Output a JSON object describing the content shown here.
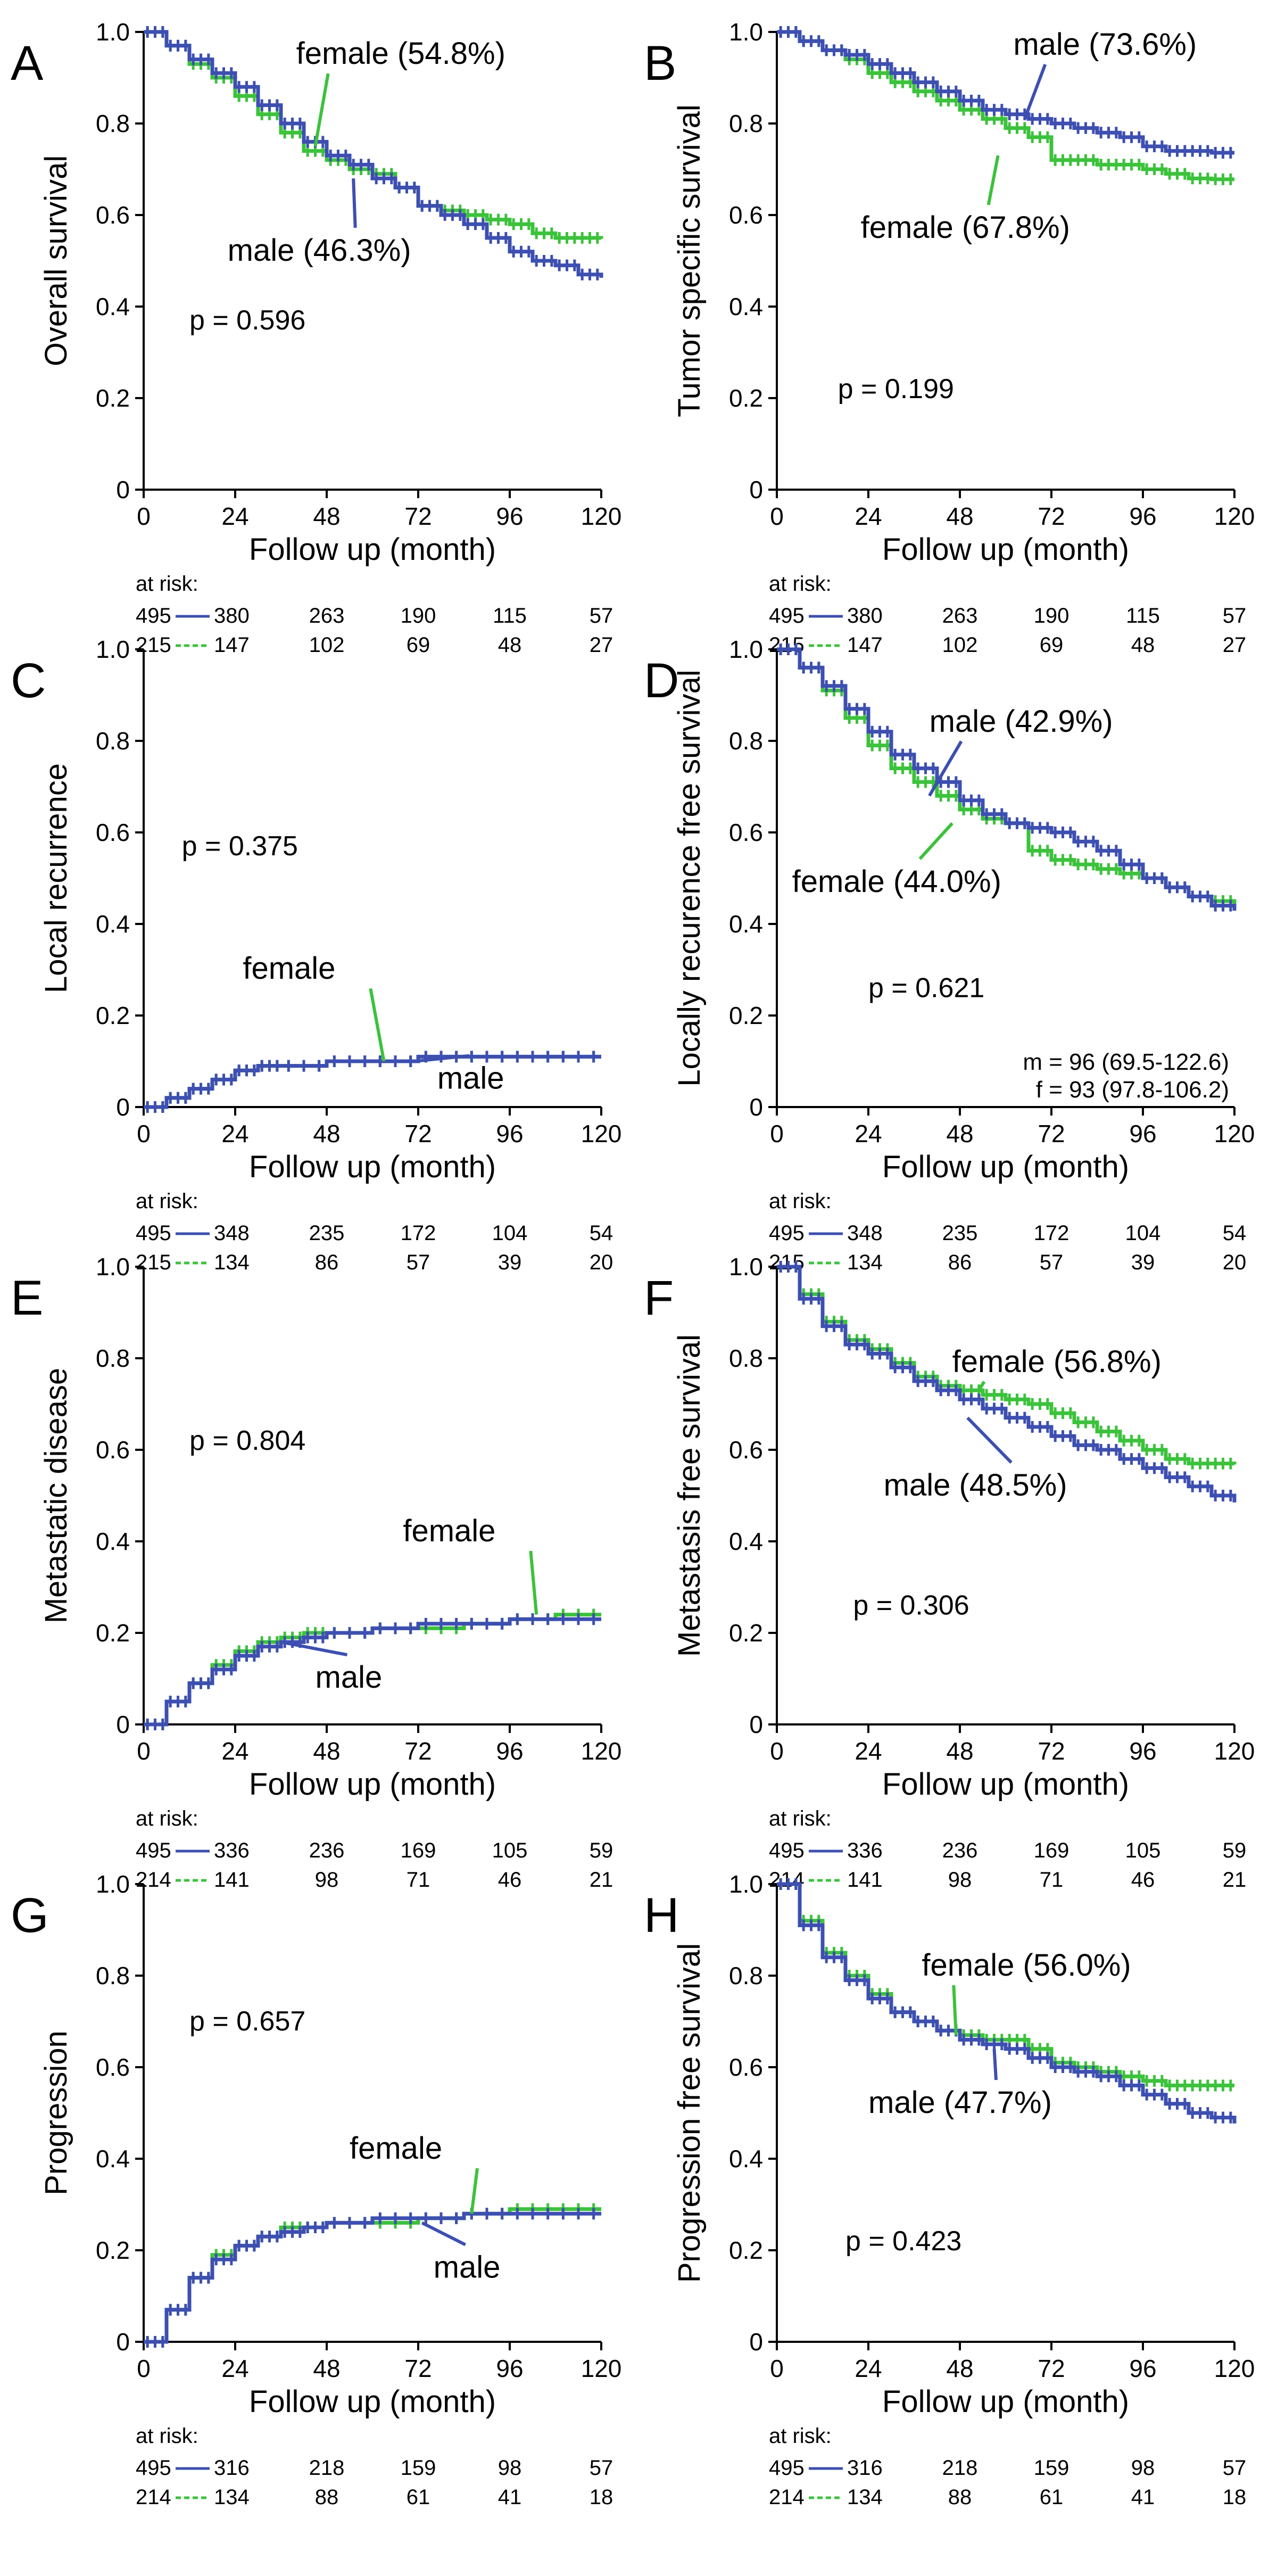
{
  "figure": {
    "colors": {
      "male": "#3d4fb0",
      "female": "#3cc23c",
      "axis": "#000000"
    },
    "x_label": "Follow up (month)",
    "x_ticks": [
      "0",
      "24",
      "48",
      "72",
      "96",
      "120"
    ],
    "y_ticks": [
      "0",
      "0.2",
      "0.4",
      "0.6",
      "0.8",
      "1.0"
    ],
    "at_risk_label": "at risk:"
  },
  "chart_data": [
    {
      "panel": "A",
      "type": "line",
      "kind": "survival",
      "ylabel": "Overall survival",
      "xlim": [
        0,
        120
      ],
      "ylim": [
        0,
        1
      ],
      "p_value": "p = 0.596",
      "series": [
        {
          "name": "male",
          "label": "male (46.3%)",
          "x": [
            0,
            6,
            12,
            18,
            24,
            30,
            36,
            42,
            48,
            54,
            60,
            66,
            72,
            78,
            84,
            90,
            96,
            102,
            108,
            114,
            120
          ],
          "y": [
            1.0,
            0.97,
            0.94,
            0.91,
            0.88,
            0.84,
            0.8,
            0.76,
            0.73,
            0.71,
            0.68,
            0.66,
            0.62,
            0.6,
            0.58,
            0.55,
            0.52,
            0.5,
            0.49,
            0.47,
            0.463
          ]
        },
        {
          "name": "female",
          "label": "female (54.8%)",
          "x": [
            0,
            6,
            12,
            18,
            24,
            30,
            36,
            42,
            48,
            54,
            60,
            66,
            72,
            78,
            84,
            90,
            96,
            102,
            108,
            114,
            120
          ],
          "y": [
            1.0,
            0.97,
            0.93,
            0.9,
            0.86,
            0.82,
            0.78,
            0.74,
            0.72,
            0.7,
            0.69,
            0.66,
            0.62,
            0.61,
            0.6,
            0.59,
            0.58,
            0.56,
            0.55,
            0.55,
            0.548
          ]
        }
      ],
      "at_risk": {
        "male": [
          "495",
          "380",
          "263",
          "190",
          "115",
          "57"
        ],
        "female": [
          "215",
          "147",
          "102",
          "69",
          "48",
          "27"
        ]
      }
    },
    {
      "panel": "B",
      "type": "line",
      "kind": "survival",
      "ylabel": "Tumor specific survival",
      "xlim": [
        0,
        120
      ],
      "ylim": [
        0,
        1
      ],
      "p_value": "p = 0.199",
      "series": [
        {
          "name": "male",
          "label": "male (73.6%)",
          "x": [
            0,
            6,
            12,
            18,
            24,
            30,
            36,
            42,
            48,
            54,
            60,
            66,
            72,
            78,
            84,
            90,
            96,
            102,
            108,
            114,
            120
          ],
          "y": [
            1.0,
            0.98,
            0.96,
            0.95,
            0.93,
            0.91,
            0.89,
            0.87,
            0.85,
            0.83,
            0.82,
            0.81,
            0.8,
            0.79,
            0.78,
            0.77,
            0.75,
            0.74,
            0.74,
            0.736,
            0.736
          ]
        },
        {
          "name": "female",
          "label": "female (67.8%)",
          "x": [
            0,
            6,
            12,
            18,
            24,
            30,
            36,
            42,
            48,
            54,
            60,
            66,
            72,
            78,
            84,
            90,
            96,
            102,
            108,
            114,
            120
          ],
          "y": [
            1.0,
            0.98,
            0.96,
            0.94,
            0.91,
            0.89,
            0.87,
            0.85,
            0.83,
            0.81,
            0.79,
            0.77,
            0.72,
            0.72,
            0.71,
            0.71,
            0.7,
            0.69,
            0.68,
            0.678,
            0.678
          ]
        }
      ],
      "at_risk": {
        "male": [
          "495",
          "380",
          "263",
          "190",
          "115",
          "57"
        ],
        "female": [
          "215",
          "147",
          "102",
          "69",
          "48",
          "27"
        ]
      }
    },
    {
      "panel": "C",
      "type": "line",
      "kind": "cumulative",
      "ylabel": "Local recurrence",
      "xlim": [
        0,
        120
      ],
      "ylim": [
        0,
        1
      ],
      "p_value": "p = 0.375",
      "series": [
        {
          "name": "male",
          "label": "male",
          "x": [
            0,
            6,
            12,
            18,
            24,
            30,
            36,
            48,
            60,
            72,
            84,
            96,
            108,
            120
          ],
          "y": [
            0.0,
            0.02,
            0.04,
            0.06,
            0.08,
            0.09,
            0.09,
            0.1,
            0.1,
            0.11,
            0.11,
            0.11,
            0.11,
            0.11
          ]
        },
        {
          "name": "female",
          "label": "female",
          "x": [
            0,
            6,
            12,
            18,
            24,
            30,
            36,
            48,
            60,
            72,
            84,
            96,
            108,
            120
          ],
          "y": [
            0.0,
            0.02,
            0.04,
            0.06,
            0.08,
            0.09,
            0.09,
            0.1,
            0.1,
            0.11,
            0.11,
            0.11,
            0.11,
            0.11
          ]
        }
      ],
      "at_risk": {
        "male": [
          "495",
          "348",
          "235",
          "172",
          "104",
          "54"
        ],
        "female": [
          "215",
          "134",
          "86",
          "57",
          "39",
          "20"
        ]
      }
    },
    {
      "panel": "D",
      "type": "line",
      "kind": "survival",
      "ylabel": "Locally recurence free survival",
      "xlim": [
        0,
        120
      ],
      "ylim": [
        0,
        1
      ],
      "p_value": "p = 0.621",
      "median_note": [
        "m = 96 (69.5-122.6)",
        "f   = 93 (97.8-106.2)"
      ],
      "series": [
        {
          "name": "male",
          "label": "male (42.9%)",
          "x": [
            0,
            6,
            12,
            18,
            24,
            30,
            36,
            42,
            48,
            54,
            60,
            66,
            72,
            78,
            84,
            90,
            96,
            102,
            108,
            114,
            120
          ],
          "y": [
            1.0,
            0.96,
            0.92,
            0.87,
            0.82,
            0.77,
            0.74,
            0.71,
            0.67,
            0.64,
            0.62,
            0.61,
            0.6,
            0.58,
            0.56,
            0.53,
            0.5,
            0.48,
            0.46,
            0.44,
            0.429
          ]
        },
        {
          "name": "female",
          "label": "female (44.0%)",
          "x": [
            0,
            6,
            12,
            18,
            24,
            30,
            36,
            42,
            48,
            54,
            60,
            66,
            72,
            78,
            84,
            90,
            96,
            102,
            108,
            114,
            120
          ],
          "y": [
            1.0,
            0.96,
            0.91,
            0.85,
            0.79,
            0.74,
            0.71,
            0.68,
            0.65,
            0.63,
            0.62,
            0.56,
            0.54,
            0.53,
            0.52,
            0.51,
            0.5,
            0.48,
            0.46,
            0.45,
            0.44
          ]
        }
      ],
      "at_risk": {
        "male": [
          "495",
          "348",
          "235",
          "172",
          "104",
          "54"
        ],
        "female": [
          "215",
          "134",
          "86",
          "57",
          "39",
          "20"
        ]
      }
    },
    {
      "panel": "E",
      "type": "line",
      "kind": "cumulative",
      "ylabel": "Metastatic disease",
      "xlim": [
        0,
        120
      ],
      "ylim": [
        0,
        1
      ],
      "p_value": "p = 0.804",
      "series": [
        {
          "name": "male",
          "label": "male",
          "x": [
            0,
            6,
            12,
            18,
            24,
            30,
            36,
            42,
            48,
            60,
            72,
            84,
            96,
            108,
            120
          ],
          "y": [
            0.0,
            0.05,
            0.09,
            0.12,
            0.15,
            0.17,
            0.18,
            0.19,
            0.2,
            0.21,
            0.22,
            0.22,
            0.23,
            0.23,
            0.23
          ]
        },
        {
          "name": "female",
          "label": "female",
          "x": [
            0,
            6,
            12,
            18,
            24,
            30,
            36,
            42,
            48,
            60,
            72,
            84,
            96,
            108,
            120
          ],
          "y": [
            0.0,
            0.05,
            0.09,
            0.13,
            0.16,
            0.18,
            0.19,
            0.2,
            0.2,
            0.21,
            0.21,
            0.22,
            0.23,
            0.24,
            0.24
          ]
        }
      ],
      "at_risk": {
        "male": [
          "495",
          "336",
          "236",
          "169",
          "105",
          "59"
        ],
        "female": [
          "214",
          "141",
          "98",
          "71",
          "46",
          "21"
        ]
      }
    },
    {
      "panel": "F",
      "type": "line",
      "kind": "survival",
      "ylabel": "Metastasis free survival",
      "xlim": [
        0,
        120
      ],
      "ylim": [
        0,
        1
      ],
      "p_value": "p = 0.306",
      "series": [
        {
          "name": "male",
          "label": "male (48.5%)",
          "x": [
            0,
            6,
            12,
            18,
            24,
            30,
            36,
            42,
            48,
            54,
            60,
            66,
            72,
            78,
            84,
            90,
            96,
            102,
            108,
            114,
            120
          ],
          "y": [
            1.0,
            0.93,
            0.87,
            0.83,
            0.81,
            0.78,
            0.75,
            0.73,
            0.71,
            0.69,
            0.67,
            0.65,
            0.63,
            0.61,
            0.6,
            0.58,
            0.56,
            0.54,
            0.52,
            0.5,
            0.485
          ]
        },
        {
          "name": "female",
          "label": "female (56.8%)",
          "x": [
            0,
            6,
            12,
            18,
            24,
            30,
            36,
            42,
            48,
            54,
            60,
            66,
            72,
            78,
            84,
            90,
            96,
            102,
            108,
            114,
            120
          ],
          "y": [
            1.0,
            0.94,
            0.88,
            0.84,
            0.82,
            0.79,
            0.76,
            0.74,
            0.73,
            0.72,
            0.71,
            0.7,
            0.68,
            0.66,
            0.64,
            0.62,
            0.6,
            0.58,
            0.57,
            0.57,
            0.568
          ]
        }
      ],
      "at_risk": {
        "male": [
          "495",
          "336",
          "236",
          "169",
          "105",
          "59"
        ],
        "female": [
          "214",
          "141",
          "98",
          "71",
          "46",
          "21"
        ]
      }
    },
    {
      "panel": "G",
      "type": "line",
      "kind": "cumulative",
      "ylabel": "Progression",
      "xlim": [
        0,
        120
      ],
      "ylim": [
        0,
        1
      ],
      "p_value": "p = 0.657",
      "series": [
        {
          "name": "male",
          "label": "male",
          "x": [
            0,
            6,
            12,
            18,
            24,
            30,
            36,
            42,
            48,
            60,
            72,
            84,
            96,
            108,
            120
          ],
          "y": [
            0.0,
            0.07,
            0.14,
            0.18,
            0.21,
            0.23,
            0.24,
            0.25,
            0.26,
            0.27,
            0.27,
            0.28,
            0.28,
            0.28,
            0.28
          ]
        },
        {
          "name": "female",
          "label": "female",
          "x": [
            0,
            6,
            12,
            18,
            24,
            30,
            36,
            42,
            48,
            60,
            72,
            84,
            96,
            108,
            120
          ],
          "y": [
            0.0,
            0.07,
            0.14,
            0.19,
            0.21,
            0.23,
            0.25,
            0.25,
            0.26,
            0.26,
            0.27,
            0.28,
            0.29,
            0.29,
            0.29
          ]
        }
      ],
      "at_risk": {
        "male": [
          "495",
          "316",
          "218",
          "159",
          "98",
          "57"
        ],
        "female": [
          "214",
          "134",
          "88",
          "61",
          "41",
          "18"
        ]
      }
    },
    {
      "panel": "H",
      "type": "line",
      "kind": "survival",
      "ylabel": "Progression free survival",
      "xlim": [
        0,
        120
      ],
      "ylim": [
        0,
        1
      ],
      "p_value": "p = 0.423",
      "series": [
        {
          "name": "male",
          "label": "male (47.7%)",
          "x": [
            0,
            6,
            12,
            18,
            24,
            30,
            36,
            42,
            48,
            54,
            60,
            66,
            72,
            78,
            84,
            90,
            96,
            102,
            108,
            114,
            120
          ],
          "y": [
            1.0,
            0.91,
            0.84,
            0.79,
            0.75,
            0.72,
            0.7,
            0.68,
            0.66,
            0.65,
            0.64,
            0.62,
            0.6,
            0.59,
            0.58,
            0.56,
            0.54,
            0.52,
            0.5,
            0.49,
            0.477
          ]
        },
        {
          "name": "female",
          "label": "female (56.0%)",
          "x": [
            0,
            6,
            12,
            18,
            24,
            30,
            36,
            42,
            48,
            54,
            60,
            66,
            72,
            78,
            84,
            90,
            96,
            102,
            108,
            114,
            120
          ],
          "y": [
            1.0,
            0.92,
            0.85,
            0.8,
            0.76,
            0.72,
            0.7,
            0.68,
            0.67,
            0.66,
            0.66,
            0.64,
            0.61,
            0.6,
            0.59,
            0.58,
            0.57,
            0.56,
            0.56,
            0.56,
            0.56
          ]
        }
      ],
      "at_risk": {
        "male": [
          "495",
          "316",
          "218",
          "159",
          "98",
          "57"
        ],
        "female": [
          "214",
          "134",
          "88",
          "61",
          "41",
          "18"
        ]
      }
    }
  ]
}
